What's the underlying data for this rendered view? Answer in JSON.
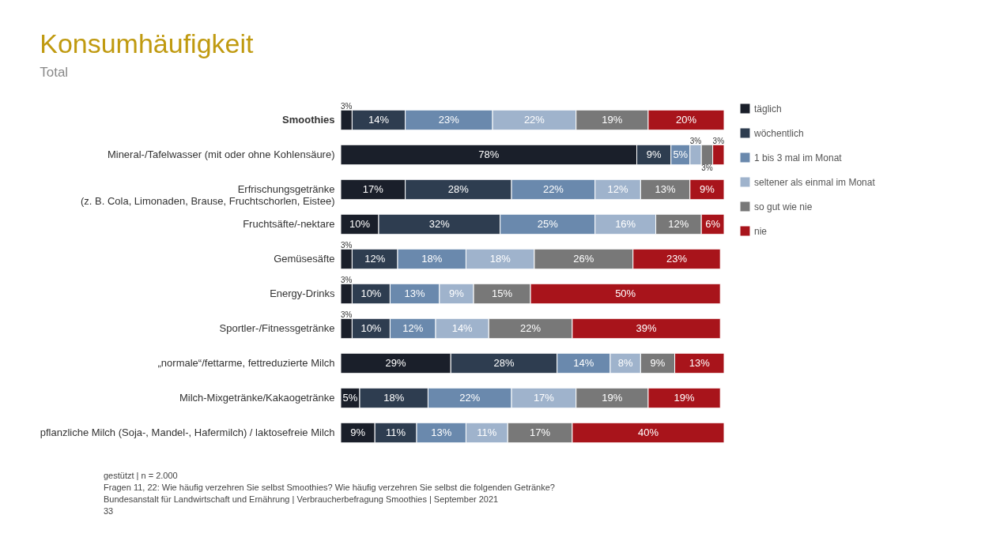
{
  "chart_data": {
    "type": "bar",
    "orientation": "horizontal",
    "stacked": true,
    "title": "Konsumhäufigkeit",
    "subtitle": "Total",
    "categories": [
      "Smoothies",
      "Mineral-/Tafelwasser (mit oder ohne Kohlensäure)",
      "Erfrischungsgetränke\n(z. B. Cola, Limonaden, Brause, Fruchtschorlen, Eistee)",
      "Fruchtsäfte/-nektare",
      "Gemüsesäfte",
      "Energy-Drinks",
      "Sportler-/Fitnessgetränke",
      "„normale“/fettarme, fettreduzierte Milch",
      "Milch-Mixgetränke/Kakaogetränke",
      "pflanzliche Milch (Soja-, Mandel-, Hafermilch) / laktosefreie Milch"
    ],
    "series": [
      {
        "name": "täglich",
        "color": "#1a1f2a",
        "values": [
          3,
          78,
          17,
          10,
          3,
          3,
          3,
          29,
          5,
          9
        ],
        "value_labels": [
          "3%",
          "78%",
          "17%",
          "10%",
          "3%",
          "3%",
          "3%",
          "29%",
          "5%",
          "9%"
        ]
      },
      {
        "name": "wöchentlich",
        "color": "#2e3d50",
        "values": [
          14,
          9,
          28,
          32,
          12,
          10,
          10,
          28,
          18,
          11
        ],
        "value_labels": [
          "14%",
          "9%",
          "28%",
          "32%",
          "12%",
          "10%",
          "10%",
          "28%",
          "18%",
          "11%"
        ]
      },
      {
        "name": "1 bis 3 mal im Monat",
        "color": "#6a89ad",
        "values": [
          23,
          5,
          22,
          25,
          18,
          13,
          12,
          14,
          22,
          13
        ],
        "value_labels": [
          "23%",
          "5%",
          "22%",
          "25%",
          "18%",
          "13%",
          "12%",
          "14%",
          "22%",
          "13%"
        ]
      },
      {
        "name": "seltener als einmal im Monat",
        "color": "#9fb3cc",
        "values": [
          22,
          3,
          12,
          16,
          18,
          9,
          14,
          8,
          17,
          11
        ],
        "value_labels": [
          "22%",
          "3%",
          "12%",
          "16%",
          "18%",
          "9%",
          "14%",
          "8%",
          "17%",
          "11%"
        ]
      },
      {
        "name": "so gut wie nie",
        "color": "#787878",
        "values": [
          19,
          3,
          13,
          12,
          26,
          15,
          22,
          9,
          19,
          17
        ],
        "value_labels": [
          "19%",
          "3%",
          "13%",
          "12%",
          "26%",
          "15%",
          "22%",
          "9%",
          "19%",
          "17%"
        ]
      },
      {
        "name": "nie",
        "color": "#a8141b",
        "values": [
          20,
          3,
          9,
          6,
          23,
          50,
          39,
          13,
          19,
          40
        ],
        "value_labels": [
          "20%",
          "3%",
          "9%",
          "6%",
          "23%",
          "50%",
          "39%",
          "13%",
          "19%",
          "40%"
        ]
      }
    ],
    "xlim": [
      0,
      101
    ],
    "tick_labels": "y",
    "legend": "right",
    "grid": false,
    "annotations": [
      "gestützt | n = 2.000",
      "Fragen 11, 22: Wie häufig verzehren Sie selbst Smoothies? Wie häufig verzehren Sie selbst die folgenden Getränke?",
      "Bundesanstalt für Landwirtschaft und Ernährung | Verbraucherbefragung Smoothies | September 2021",
      "33"
    ]
  }
}
